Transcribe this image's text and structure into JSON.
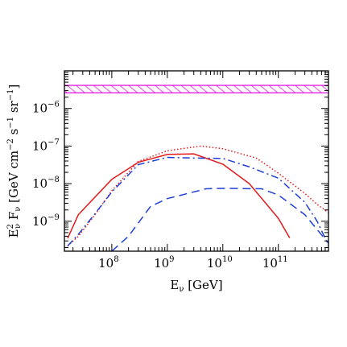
{
  "chart_data": {
    "type": "line",
    "xlabel": {
      "main": "E",
      "sub": "ν",
      "unit": " [GeV]"
    },
    "ylabel": {
      "e": "E",
      "e_sup": "2",
      "e_sub": "ν",
      "f": " F",
      "f_sub": "ν",
      "unit_open": " [GeV cm",
      "cm_exp": "−2",
      "s_part": " s",
      "s_exp": "−1",
      "sr_part": " sr",
      "sr_exp": "−1",
      "unit_close": "]"
    },
    "x_scale": "log",
    "y_scale": "log",
    "xlim": [
      14000000.0,
      800000000000.0
    ],
    "ylim": [
      1.6e-10,
      1e-05
    ],
    "x_ticks": [
      {
        "value": 100000000.0,
        "base": "10",
        "exp": "8"
      },
      {
        "value": 1000000000.0,
        "base": "10",
        "exp": "9"
      },
      {
        "value": 10000000000.0,
        "base": "10",
        "exp": "10"
      },
      {
        "value": 100000000000.0,
        "base": "10",
        "exp": "11"
      }
    ],
    "y_ticks": [
      {
        "value": 1e-09,
        "base": "10",
        "exp": "−9"
      },
      {
        "value": 1e-08,
        "base": "10",
        "exp": "−8"
      },
      {
        "value": 1e-07,
        "base": "10",
        "exp": "−7"
      },
      {
        "value": 1e-06,
        "base": "10",
        "exp": "−6"
      }
    ],
    "band": {
      "y_low": 2.6e-06,
      "y_high": 4.1e-06,
      "color": "#e620e6",
      "style": "hatched"
    },
    "series": [
      {
        "color": "#e41a1c",
        "dash": "solid",
        "x": [
          16000000.0,
          25000000.0,
          100000000.0,
          300000000.0,
          1000000000.0,
          3000000000.0,
          10000000000.0,
          30000000000.0,
          100000000000.0,
          160000000000.0
        ],
        "y": [
          3.5e-10,
          1.5e-09,
          1.3e-08,
          3.7e-08,
          6e-08,
          6.2e-08,
          3.3e-08,
          1e-08,
          1.2e-09,
          3.6e-10
        ]
      },
      {
        "color": "#e41a1c",
        "dash": "dotted",
        "x": [
          16000000.0,
          25000000.0,
          50000000.0,
          100000000.0,
          300000000.0,
          1000000000.0,
          4000000000.0,
          10000000000.0,
          40000000000.0,
          100000000000.0,
          300000000000.0,
          500000000000.0,
          800000000000.0
        ],
        "y": [
          2.2e-10,
          4e-10,
          1.5e-09,
          6.5e-09,
          3.9e-08,
          7.5e-08,
          1e-07,
          8.5e-08,
          4.8e-08,
          1.9e-08,
          5.5e-09,
          2.8e-09,
          1.7e-09
        ]
      },
      {
        "color": "#1f3fd6",
        "dash": "dashdot",
        "x": [
          16000000.0,
          25000000.0,
          50000000.0,
          100000000.0,
          300000000.0,
          1000000000.0,
          3000000000.0,
          10000000000.0,
          30000000000.0,
          100000000000.0,
          300000000000.0,
          500000000000.0,
          800000000000.0
        ],
        "y": [
          2.2e-10,
          4.5e-10,
          1.6e-09,
          6e-09,
          3.2e-08,
          5e-08,
          4.8e-08,
          4.7e-08,
          2.8e-08,
          1.4e-08,
          3.2e-09,
          1e-09,
          2.3e-10
        ]
      },
      {
        "color": "#1f3fd6",
        "dash": "dashed",
        "x": [
          100000000.0,
          200000000.0,
          500000000.0,
          1000000000.0,
          5000000000.0,
          10000000000.0,
          50000000000.0,
          100000000000.0,
          300000000000.0,
          800000000000.0
        ],
        "y": [
          1.6e-10,
          4e-10,
          2.5e-09,
          4e-09,
          7.3e-09,
          7.5e-09,
          7.3e-09,
          5e-09,
          1.5e-09,
          2.6e-10
        ]
      }
    ]
  }
}
